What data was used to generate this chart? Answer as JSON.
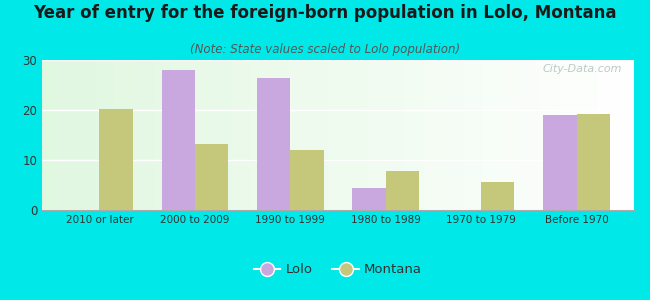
{
  "title": "Year of entry for the foreign-born population in Lolo, Montana",
  "subtitle": "(Note: State values scaled to Lolo population)",
  "categories": [
    "2010 or later",
    "2000 to 2009",
    "1990 to 1999",
    "1980 to 1989",
    "1970 to 1979",
    "Before 1970"
  ],
  "lolo_values": [
    0,
    28,
    26.5,
    4.5,
    0,
    19
  ],
  "montana_values": [
    20.3,
    13.2,
    12,
    7.8,
    5.7,
    19.3
  ],
  "lolo_color": "#c9a8e0",
  "montana_color": "#c5c87a",
  "background_color": "#00e8e8",
  "ylim": [
    0,
    30
  ],
  "yticks": [
    0,
    10,
    20,
    30
  ],
  "bar_width": 0.35,
  "title_fontsize": 12,
  "subtitle_fontsize": 8.5,
  "watermark": "City-Data.com"
}
